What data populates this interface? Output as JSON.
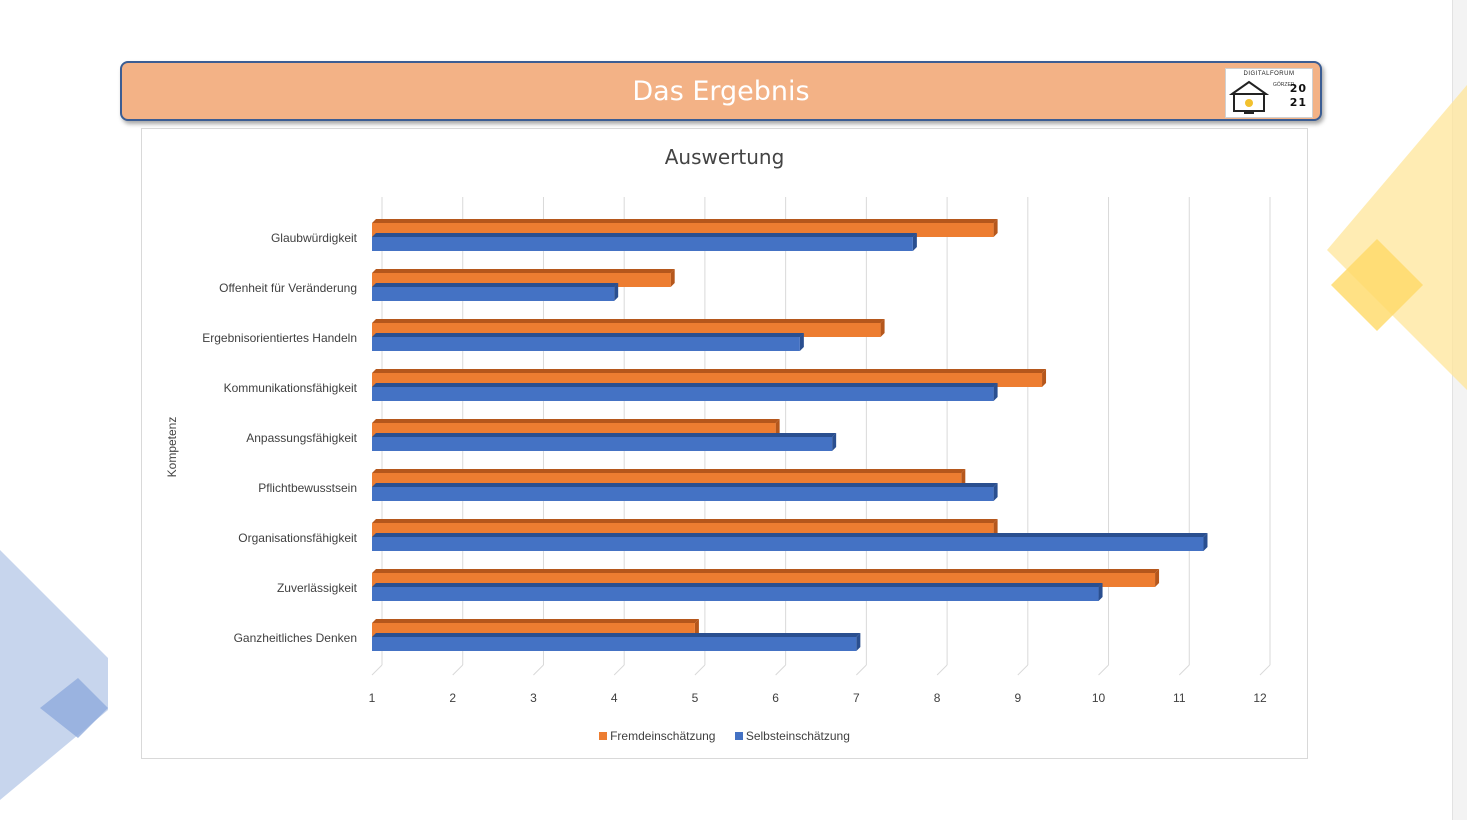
{
  "banner": {
    "title": "Das Ergebnis"
  },
  "logo": {
    "top_text": "DIGITALFORUM",
    "year_top": "20",
    "year_bottom": "21",
    "side_text": "GÖRZER"
  },
  "colors": {
    "banner_bg": "#f3b286",
    "banner_border": "#3b5d93",
    "fremd": "#ed7d31",
    "fremd_dark": "#b5571c",
    "selbst": "#4472c4",
    "selbst_dark": "#2a4f90",
    "grid": "#d9d9d9",
    "deco_yellow": "#ffe699",
    "deco_blue": "#b4c7e7"
  },
  "chart_data": {
    "type": "bar",
    "orientation": "horizontal",
    "title": "Auswertung",
    "xlabel": "",
    "ylabel": "Kompetenz",
    "xlim": [
      1,
      12
    ],
    "ticks": [
      "1",
      "2",
      "3",
      "4",
      "5",
      "6",
      "7",
      "8",
      "9",
      "10",
      "11",
      "12"
    ],
    "categories": [
      "Glaubwürdigkeit",
      "Offenheit für Veränderung",
      "Ergebnisorientiertes Handeln",
      "Kommunikationsfähigkeit",
      "Anpassungsfähigkeit",
      "Pflichtbewusstsein",
      "Organisationsfähigkeit",
      "Zuverlässigkeit",
      "Ganzheitliches Denken"
    ],
    "series": [
      {
        "name": "Fremdeinschätzung",
        "values": [
          8.7,
          4.7,
          7.3,
          9.3,
          6.0,
          8.3,
          8.7,
          10.7,
          5.0
        ]
      },
      {
        "name": "Selbsteinschätzung",
        "values": [
          7.7,
          4.0,
          6.3,
          8.7,
          6.7,
          8.7,
          11.3,
          10.0,
          7.0
        ]
      }
    ],
    "legend_position": "bottom",
    "grid": true
  }
}
